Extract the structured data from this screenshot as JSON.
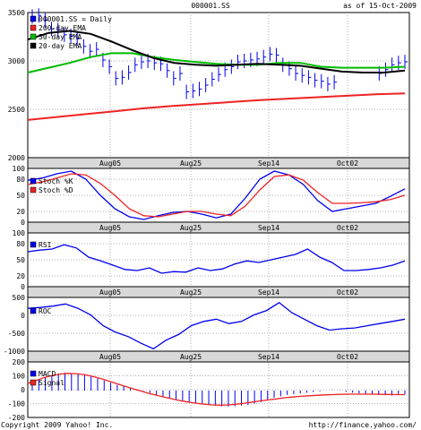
{
  "header": {
    "symbol": "000001.SS",
    "date": "as of 15-Oct-2009"
  },
  "footer": {
    "copyright": "Copyright 2009 Yahoo! Inc.",
    "url": "http://finance.yahoo.com/"
  },
  "date_bands": [
    "Aug05",
    "Aug25",
    "Sep14",
    "Oct02"
  ],
  "colors": {
    "bars": "#0000ee",
    "ema200": "#ee2222",
    "ema50": "#00bb00",
    "ema20": "#000000",
    "stochK": "#0000ee",
    "stochD": "#ee2222",
    "rsi": "#0000ee",
    "roc": "#0000ee",
    "macd_hist": "#0000ee",
    "signal": "#ee2222",
    "band": "#d8d8d8"
  },
  "chart_data": [
    {
      "type": "line",
      "title": "000001.SS",
      "ylim": [
        2000,
        3500
      ],
      "yticks": [
        "3500",
        "3000",
        "2500",
        "2000"
      ],
      "legend": [
        "000001.SS = Daily",
        "200-day EMA",
        "50-day EMA",
        "20-day EMA"
      ],
      "legend_placement": "top-left",
      "grid": true,
      "series": [
        {
          "name": "000001.SS = Daily",
          "style": "hlc-bars",
          "values": [
            3460,
            3470,
            3420,
            3330,
            3320,
            3270,
            3260,
            3230,
            3150,
            3100,
            3120,
            3010,
            2940,
            2820,
            2830,
            2880,
            2960,
            2990,
            3000,
            2980,
            2970,
            2900,
            2820,
            2870,
            2680,
            2690,
            2710,
            2750,
            2810,
            2860,
            2910,
            2940,
            2990,
            3000,
            3010,
            3020,
            3040,
            3070,
            3060,
            2960,
            2920,
            2870,
            2850,
            2830,
            2800,
            2790,
            2760,
            2780,
            null,
            null,
            null,
            null,
            null,
            null,
            2870,
            2910,
            2960,
            2980,
            2990
          ]
        },
        {
          "name": "200-day EMA",
          "values": [
            2390,
            2420,
            2450,
            2480,
            2510,
            2535,
            2555,
            2575,
            2595,
            2610,
            2625,
            2640,
            2655,
            2665
          ]
        },
        {
          "name": "50-day EMA",
          "values": [
            2880,
            2930,
            2980,
            3040,
            3080,
            3080,
            3040,
            3010,
            2990,
            2970,
            2960,
            2960,
            2980,
            2980,
            2940,
            2930,
            2930,
            2930,
            2940
          ]
        },
        {
          "name": "20-day EMA",
          "values": [
            3220,
            3290,
            3310,
            3280,
            3200,
            3110,
            3030,
            2980,
            2960,
            2950,
            2960,
            2970,
            2960,
            2950,
            2920,
            2890,
            2880,
            2880,
            2900
          ]
        }
      ]
    },
    {
      "type": "line",
      "ylim": [
        0,
        100
      ],
      "yticks": [
        "100",
        "80",
        "50",
        "20",
        "0"
      ],
      "legend": [
        "Stoch %K",
        "Stoch %D"
      ],
      "series": [
        {
          "name": "Stoch %K",
          "values": [
            78,
            82,
            90,
            95,
            80,
            50,
            25,
            10,
            5,
            12,
            18,
            20,
            15,
            8,
            15,
            45,
            80,
            95,
            88,
            70,
            40,
            20,
            25,
            30,
            35,
            48,
            62
          ]
        },
        {
          "name": "Stoch %D",
          "values": [
            70,
            75,
            82,
            90,
            88,
            72,
            50,
            25,
            12,
            10,
            15,
            20,
            20,
            15,
            12,
            30,
            60,
            85,
            88,
            78,
            55,
            35,
            35,
            36,
            38,
            42,
            50
          ]
        }
      ]
    },
    {
      "type": "line",
      "ylim": [
        0,
        100
      ],
      "yticks": [
        "100",
        "80",
        "50",
        "20",
        "0"
      ],
      "legend": [
        "RSI"
      ],
      "series": [
        {
          "name": "RSI",
          "values": [
            65,
            68,
            70,
            78,
            72,
            55,
            48,
            40,
            32,
            30,
            35,
            25,
            28,
            27,
            35,
            30,
            33,
            42,
            48,
            45,
            50,
            55,
            60,
            70,
            55,
            45,
            30,
            30,
            32,
            35,
            40,
            48
          ]
        }
      ]
    },
    {
      "type": "line",
      "ylim": [
        -1000,
        500
      ],
      "yticks": [
        "500",
        "0",
        "-500",
        "-1000"
      ],
      "legend": [
        "ROC"
      ],
      "series": [
        {
          "name": "ROC",
          "values": [
            250,
            270,
            300,
            350,
            250,
            100,
            -150,
            -300,
            -400,
            -550,
            -680,
            -480,
            -350,
            -150,
            -50,
            0,
            -100,
            -50,
            100,
            200,
            380,
            150,
            0,
            -150,
            -250,
            -220,
            -200,
            -150,
            -100,
            -50,
            0
          ]
        }
      ]
    },
    {
      "type": "bar",
      "ylim": [
        -200,
        200
      ],
      "yticks": [
        "200",
        "100",
        "0",
        "-100",
        "-200"
      ],
      "legend": [
        "MACD",
        "Signal"
      ],
      "series": [
        {
          "name": "MACD",
          "style": "histogram",
          "values": [
            60,
            80,
            95,
            110,
            120,
            125,
            122,
            118,
            110,
            98,
            85,
            70,
            55,
            40,
            30,
            18,
            8,
            -2,
            -15,
            -30,
            -45,
            -55,
            -65,
            -75,
            -85,
            -90,
            -95,
            -100,
            -105,
            -110,
            -112,
            -110,
            -105,
            -100,
            -90,
            -80,
            -65,
            -50,
            -40,
            -30,
            -25,
            -20,
            -15,
            -10,
            -5,
            0,
            2,
            -2,
            -8,
            -15,
            -20,
            -25,
            -28,
            -30,
            -32,
            -35,
            -30,
            -25
          ]
        },
        {
          "name": "Signal",
          "values": [
            50,
            70,
            90,
            105,
            115,
            120,
            118,
            112,
            100,
            85,
            68,
            50,
            32,
            15,
            -2,
            -18,
            -32,
            -45,
            -58,
            -70,
            -80,
            -88,
            -95,
            -100,
            -102,
            -100,
            -95,
            -88,
            -80,
            -72,
            -65,
            -58,
            -50,
            -45,
            -40,
            -36,
            -33,
            -30,
            -28,
            -26,
            -25,
            -25,
            -25,
            -25,
            -26,
            -27,
            -28,
            -28
          ]
        }
      ]
    }
  ]
}
